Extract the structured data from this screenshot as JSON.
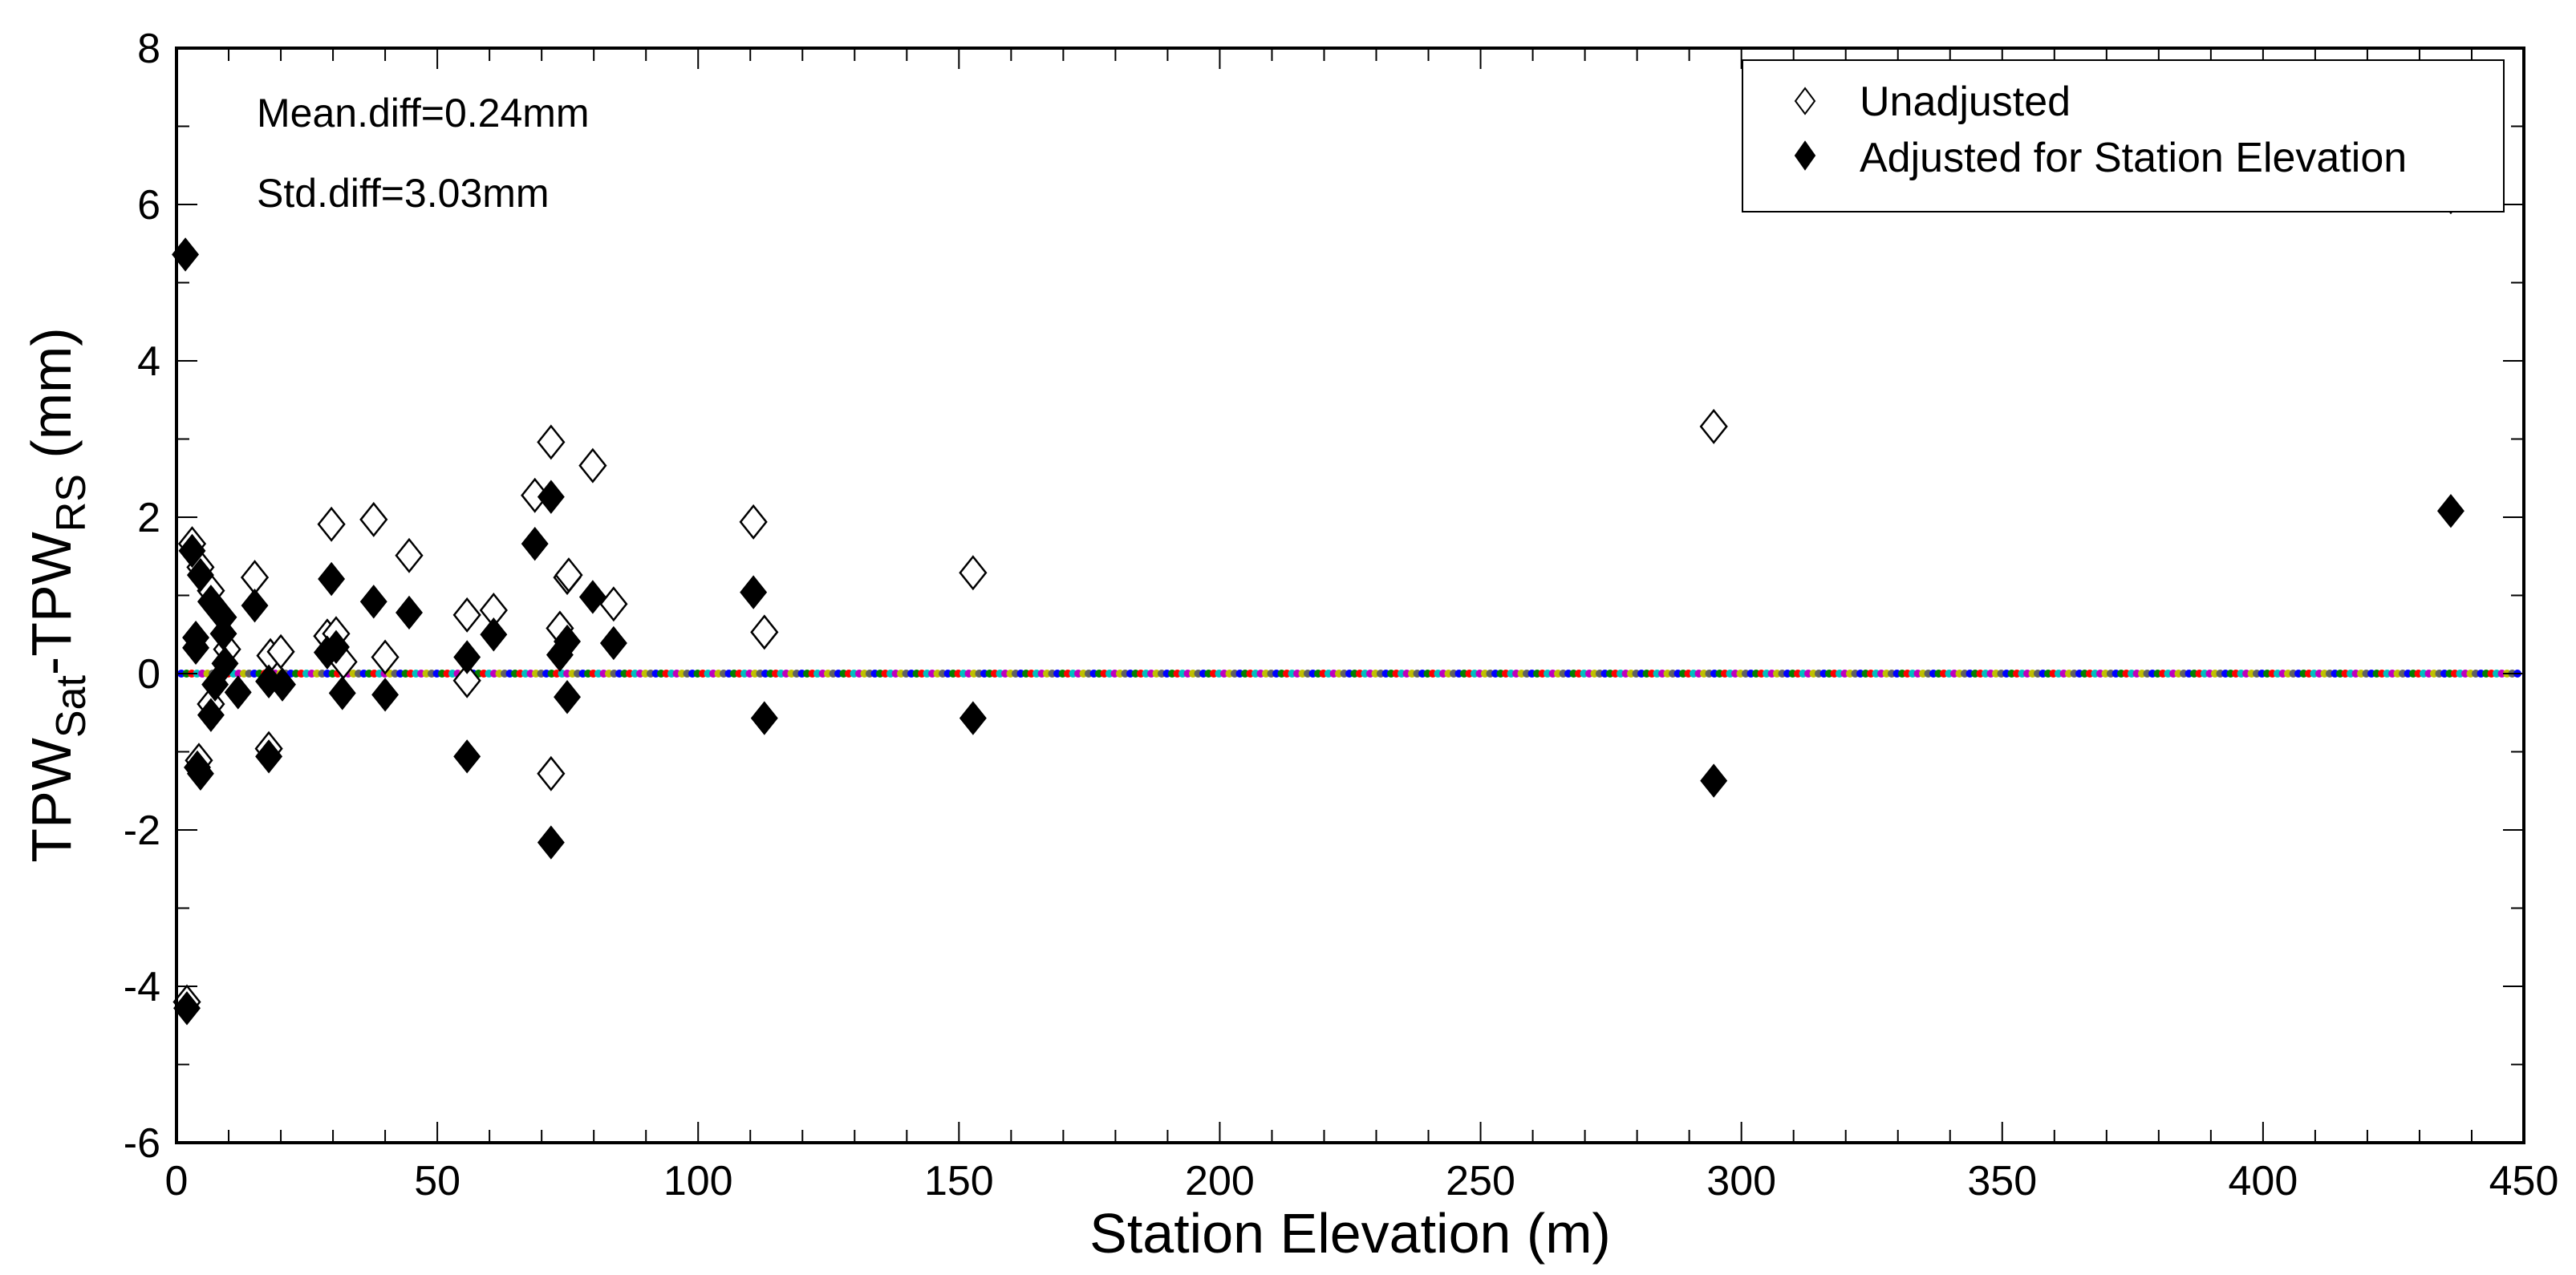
{
  "chart_data": {
    "type": "scatter",
    "title": "",
    "xlabel": "Station Elevation (m)",
    "ylabel": "TPW_Sat-TPW_RS (mm)",
    "ylabel_parts": {
      "main1": "TPW",
      "sub1": "Sat",
      "mid": "-TPW",
      "sub2": "RS",
      "tail": " (mm)"
    },
    "xlim": [
      0,
      450
    ],
    "ylim": [
      -6,
      8
    ],
    "xticks": [
      0,
      50,
      100,
      150,
      200,
      250,
      300,
      350,
      400,
      450
    ],
    "yticks": [
      -6,
      -4,
      -2,
      0,
      2,
      4,
      6,
      8
    ],
    "x_minor_step": 10,
    "y_minor_step": 1,
    "grid": false,
    "legend_position": "upper right",
    "annotations": [
      "Mean.diff=0.24mm",
      "Std.diff=3.03mm"
    ],
    "reference_line": {
      "y": 0,
      "style": "multicolor dotted",
      "colors": [
        "#0000ff",
        "#008000",
        "#ff0000",
        "#00bfbf",
        "#bf00bf",
        "#bfbf00",
        "#606060"
      ]
    },
    "series": [
      {
        "name": "Unadjusted",
        "marker": "open-diamond",
        "points": [
          [
            2,
            -4.2
          ],
          [
            3,
            1.66
          ],
          [
            4.6,
            1.36
          ],
          [
            6.6,
            1.06
          ],
          [
            9.7,
            0.31
          ],
          [
            15,
            1.23
          ],
          [
            18,
            0.23
          ],
          [
            20,
            0.28
          ],
          [
            6.6,
            -0.39
          ],
          [
            17.7,
            -0.96
          ],
          [
            4.3,
            -1.11
          ],
          [
            29.7,
            1.91
          ],
          [
            37.8,
            1.97
          ],
          [
            44.6,
            1.51
          ],
          [
            28.9,
            0.48
          ],
          [
            30.6,
            0.51
          ],
          [
            32,
            0.15
          ],
          [
            40,
            0.21
          ],
          [
            55.7,
            0.75
          ],
          [
            55.7,
            -0.09
          ],
          [
            60.8,
            0.81
          ],
          [
            71.8,
            2.96
          ],
          [
            68.7,
            2.28
          ],
          [
            79.8,
            2.66
          ],
          [
            74.9,
            1.23
          ],
          [
            75.2,
            1.26
          ],
          [
            83.8,
            0.89
          ],
          [
            73.5,
            0.58
          ],
          [
            71.8,
            -1.28
          ],
          [
            110.6,
            1.94
          ],
          [
            112.7,
            0.53
          ],
          [
            152.7,
            1.29
          ],
          [
            294.7,
            3.16
          ],
          [
            436,
            6.1
          ]
        ]
      },
      {
        "name": "Adjusted for Station Elevation",
        "marker": "filled-diamond",
        "points": [
          [
            1.7,
            5.36
          ],
          [
            2,
            -4.28
          ],
          [
            3,
            1.57
          ],
          [
            4.6,
            1.26
          ],
          [
            6.6,
            0.92
          ],
          [
            9,
            0.72
          ],
          [
            9,
            0.51
          ],
          [
            15,
            0.87
          ],
          [
            3.7,
            0.46
          ],
          [
            3.7,
            0.33
          ],
          [
            9.3,
            0.13
          ],
          [
            17.7,
            -0.1
          ],
          [
            20.3,
            -0.14
          ],
          [
            7.4,
            -0.14
          ],
          [
            11.8,
            -0.24
          ],
          [
            6.6,
            -0.53
          ],
          [
            17.7,
            -1.06
          ],
          [
            4,
            -1.2
          ],
          [
            4.6,
            -1.28
          ],
          [
            29.7,
            1.21
          ],
          [
            37.8,
            0.92
          ],
          [
            44.6,
            0.78
          ],
          [
            28.9,
            0.27
          ],
          [
            30.6,
            0.34
          ],
          [
            31.8,
            -0.25
          ],
          [
            40,
            -0.27
          ],
          [
            55.7,
            0.21
          ],
          [
            55.7,
            -1.06
          ],
          [
            60.8,
            0.5
          ],
          [
            71.8,
            2.26
          ],
          [
            68.7,
            1.66
          ],
          [
            79.8,
            0.98
          ],
          [
            83.8,
            0.39
          ],
          [
            74.9,
            0.41
          ],
          [
            73.5,
            0.24
          ],
          [
            74.9,
            -0.3
          ],
          [
            71.8,
            -2.16
          ],
          [
            110.6,
            1.04
          ],
          [
            112.7,
            -0.57
          ],
          [
            152.7,
            -0.57
          ],
          [
            294.7,
            -1.37
          ],
          [
            436,
            2.08
          ]
        ]
      }
    ]
  },
  "legend": {
    "items": [
      {
        "label": "Unadjusted",
        "marker": "open-diamond"
      },
      {
        "label": "Adjusted for Station Elevation",
        "marker": "filled-diamond"
      }
    ]
  },
  "annotations": {
    "mean": "Mean.diff=0.24mm",
    "std": "Std.diff=3.03mm"
  }
}
